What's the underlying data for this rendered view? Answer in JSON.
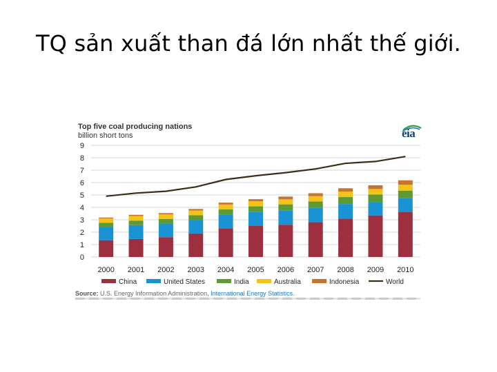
{
  "slide": {
    "title": "TQ sản xuất than đá lớn nhất thế giới."
  },
  "chart_data": {
    "type": "bar",
    "stacked": true,
    "title": "Top five coal producing nations",
    "subtitle": "billion short tons",
    "categories": [
      "2000",
      "2001",
      "2002",
      "2003",
      "2004",
      "2005",
      "2006",
      "2007",
      "2008",
      "2009",
      "2010"
    ],
    "series": [
      {
        "name": "China",
        "color": "#9e2f3e",
        "values": [
          1.35,
          1.45,
          1.6,
          1.9,
          2.3,
          2.5,
          2.6,
          2.8,
          3.1,
          3.35,
          3.65
        ]
      },
      {
        "name": "United States",
        "color": "#1a93d4",
        "values": [
          1.07,
          1.12,
          1.09,
          1.07,
          1.11,
          1.13,
          1.16,
          1.15,
          1.17,
          1.07,
          1.08
        ]
      },
      {
        "name": "India",
        "color": "#5d9a33",
        "values": [
          0.34,
          0.36,
          0.37,
          0.39,
          0.42,
          0.45,
          0.48,
          0.52,
          0.56,
          0.61,
          0.62
        ]
      },
      {
        "name": "Australia",
        "color": "#f3c317",
        "values": [
          0.34,
          0.37,
          0.37,
          0.38,
          0.4,
          0.41,
          0.41,
          0.43,
          0.44,
          0.45,
          0.47
        ]
      },
      {
        "name": "Indonesia",
        "color": "#c8742f",
        "values": [
          0.08,
          0.1,
          0.11,
          0.13,
          0.15,
          0.17,
          0.22,
          0.24,
          0.27,
          0.3,
          0.36
        ]
      }
    ],
    "line_series": {
      "name": "World",
      "color": "#3a2d12",
      "values": [
        4.9,
        5.15,
        5.3,
        5.65,
        6.25,
        6.55,
        6.8,
        7.1,
        7.55,
        7.7,
        8.1
      ]
    },
    "ylim": [
      0,
      9
    ],
    "yticks": [
      0,
      1,
      2,
      3,
      4,
      5,
      6,
      7,
      8,
      9
    ],
    "grid": true,
    "legend_position": "bottom"
  },
  "source": {
    "label": "Source:",
    "text": "U.S. Energy Information Administration,",
    "link": "International Energy Statistics."
  },
  "logo": {
    "text": "eia"
  }
}
